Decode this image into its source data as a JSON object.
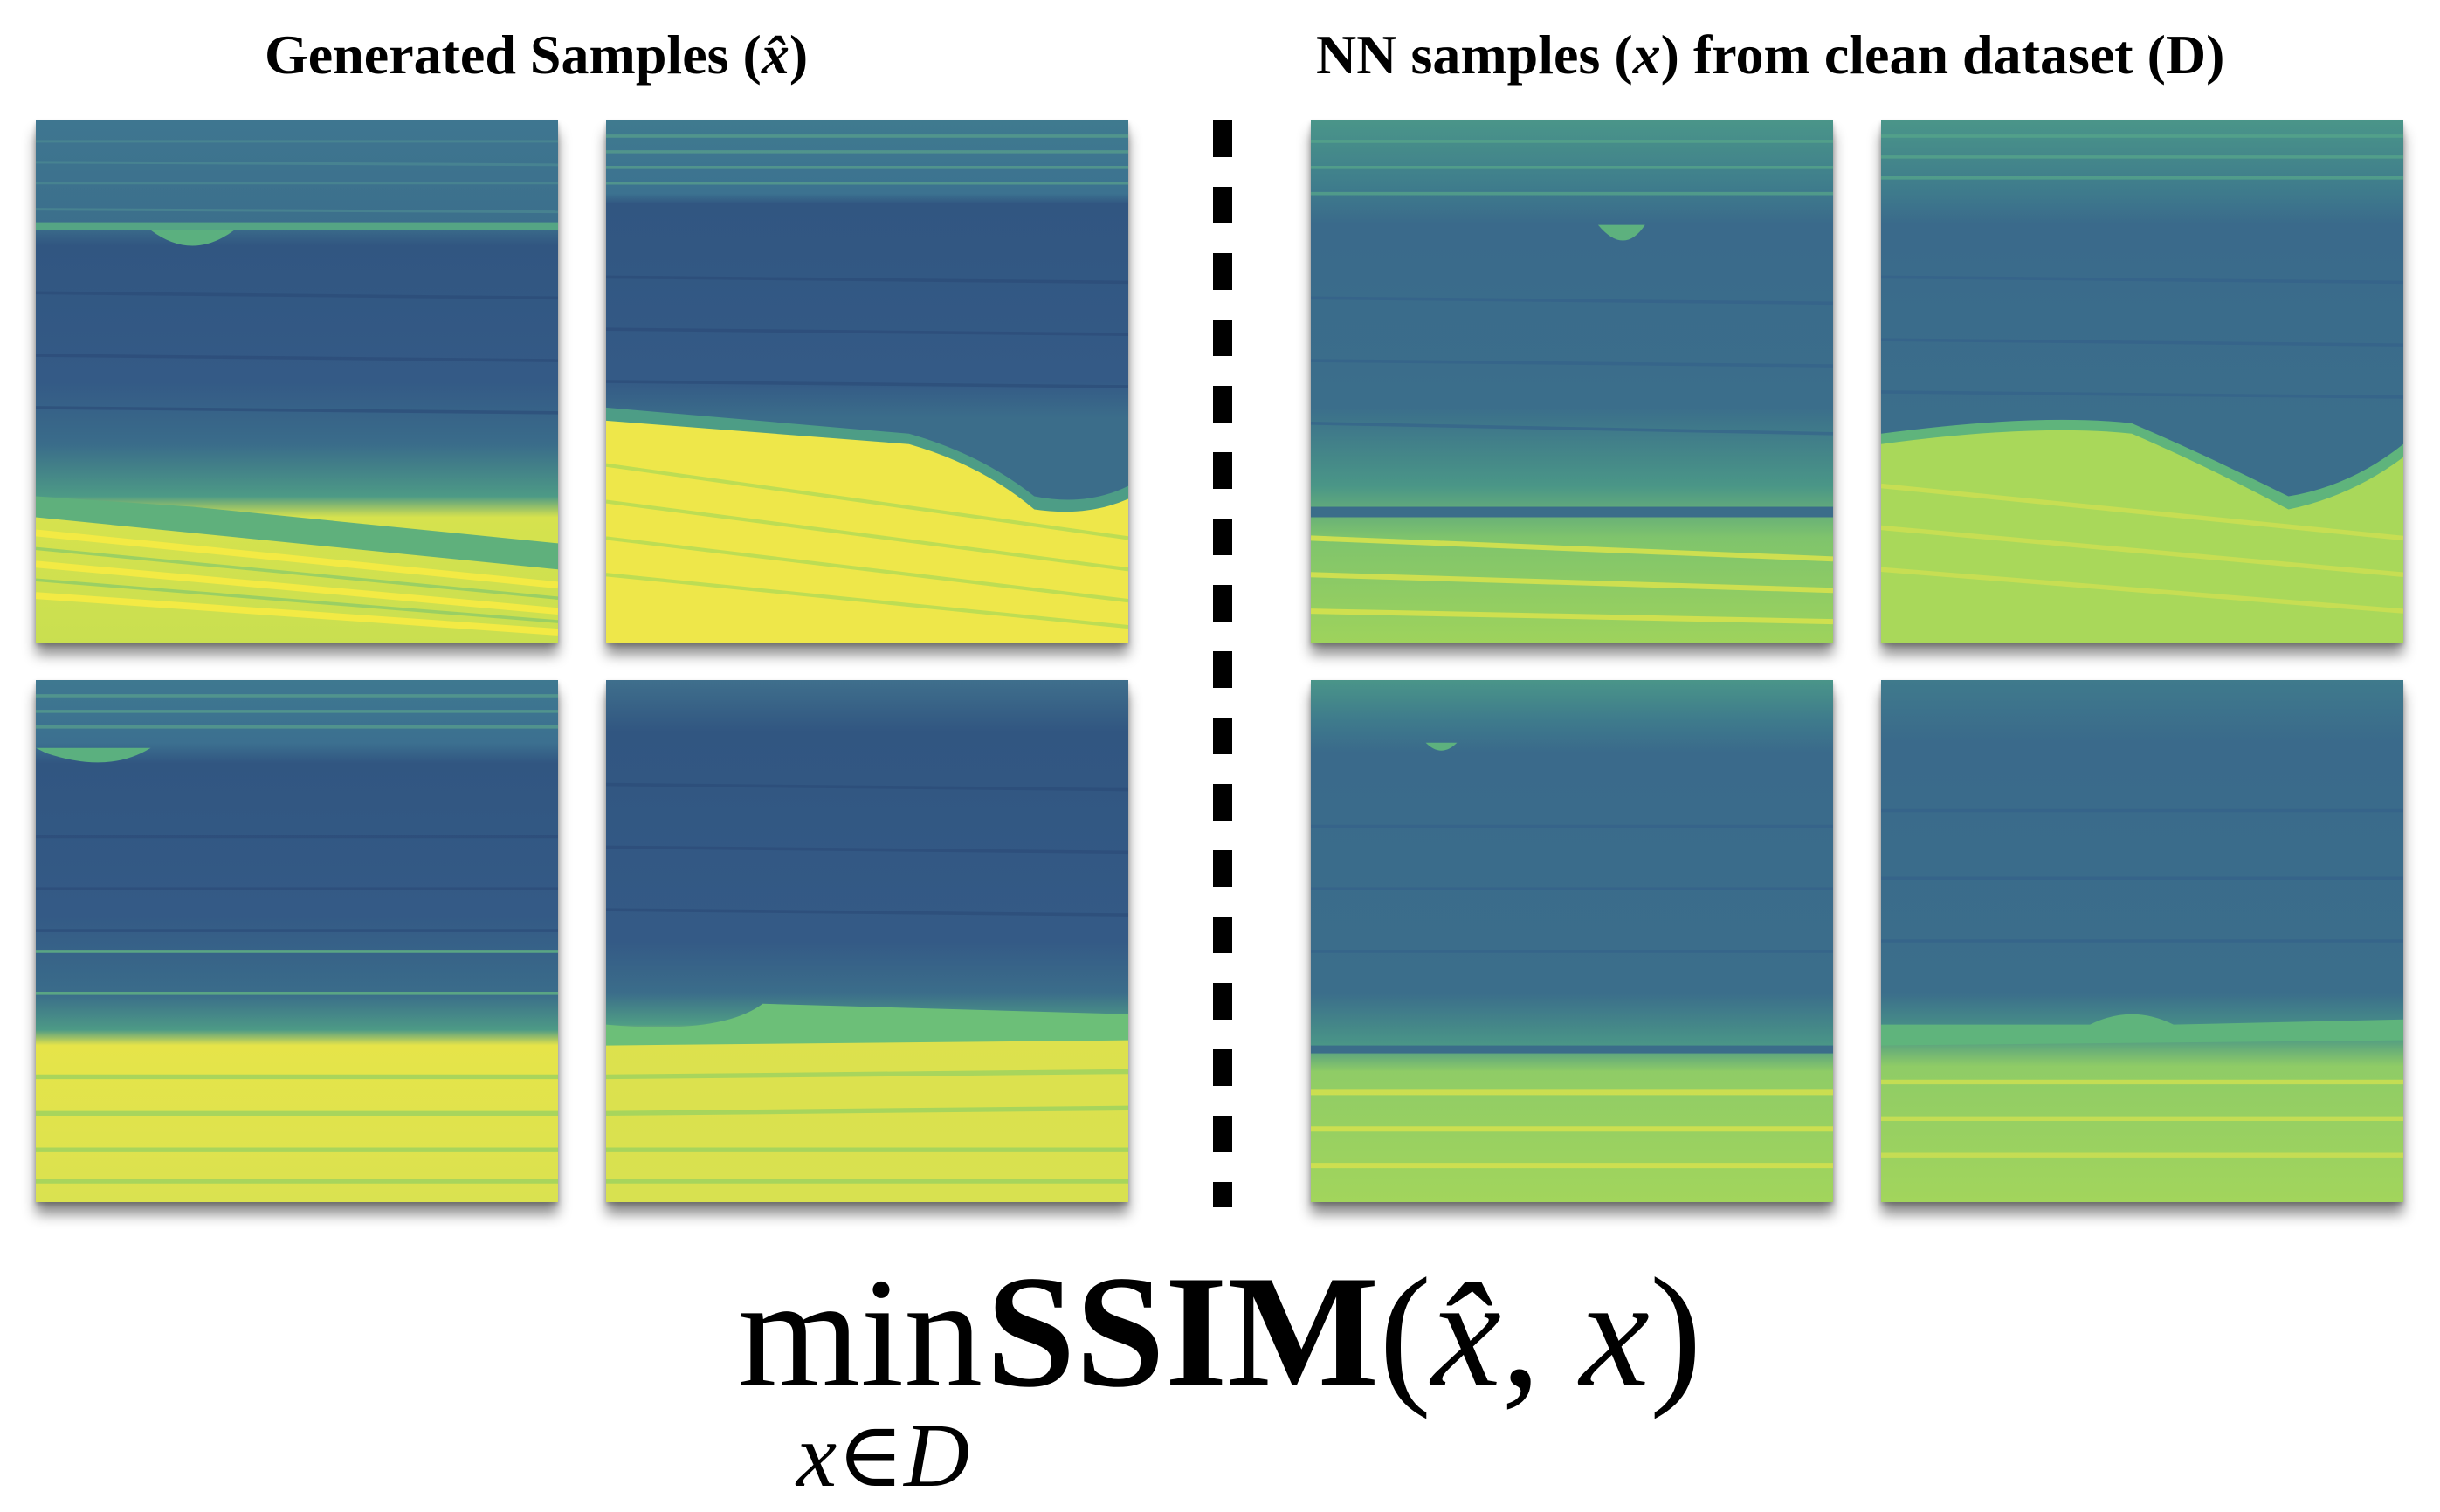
{
  "headings": {
    "left": {
      "prefix": "Generated Samples (",
      "variable": "x̂",
      "suffix": ")"
    },
    "right": {
      "prefix": "NN samples (",
      "variable": "x",
      "suffix": ") from clean dataset (D)"
    }
  },
  "formula": {
    "function": "min",
    "operator": "SSIM",
    "open_paren": "(",
    "arg1": "x̂",
    "separator": ", ",
    "arg2": "x",
    "close_paren": ")",
    "subscript": "x∈D"
  },
  "colors": {
    "deep": "#355889",
    "teal": "#3d7f8d",
    "green": "#5fb77c",
    "lime": "#a9d85a",
    "yellow": "#f0e84a"
  }
}
